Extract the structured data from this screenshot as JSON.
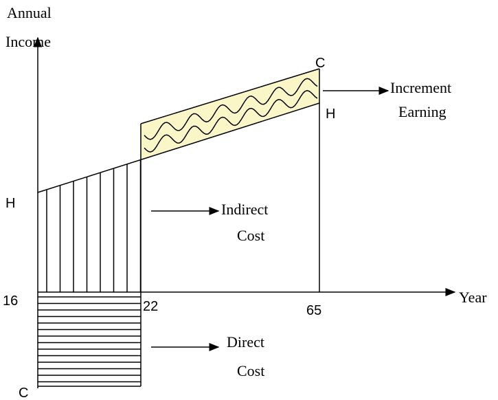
{
  "y_axis": {
    "label_line1": "Annual",
    "label_line2": "Income"
  },
  "x_axis": {
    "label": "Year",
    "ticks": [
      "16",
      "22",
      "65"
    ]
  },
  "points": {
    "h_left": "H",
    "h_right": "H",
    "c_top": "C",
    "c_bottom": "C"
  },
  "annotations": {
    "increment": {
      "line1": "Increment",
      "line2": "Earning"
    },
    "indirect": {
      "line1": "Indirect",
      "line2": "Cost"
    },
    "direct": {
      "line1": "Direct",
      "line2": "Cost"
    }
  }
}
